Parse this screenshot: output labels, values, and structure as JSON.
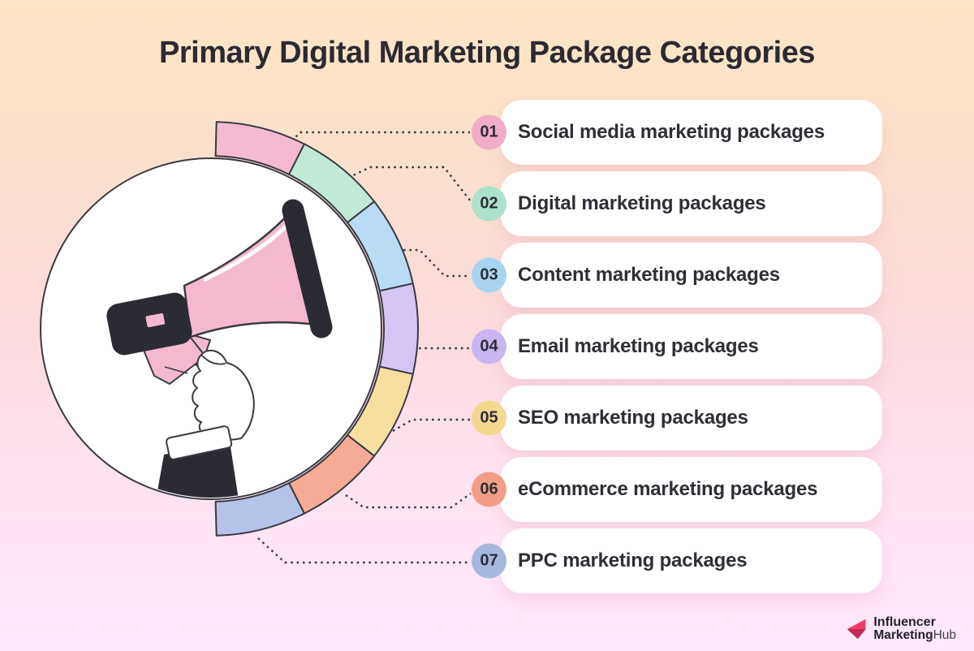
{
  "title": "Primary Digital Marketing Package Categories",
  "items": [
    {
      "number": "01",
      "label": "Social media marketing packages",
      "badge_color": "#f2abc8",
      "segment_color": "#f5bad2"
    },
    {
      "number": "02",
      "label": "Digital marketing packages",
      "badge_color": "#ace1cb",
      "segment_color": "#c0e9d6"
    },
    {
      "number": "03",
      "label": "Content marketing packages",
      "badge_color": "#a9d4f0",
      "segment_color": "#b9dcf4"
    },
    {
      "number": "04",
      "label": "Email marketing packages",
      "badge_color": "#c9b5f0",
      "segment_color": "#d5c4f6"
    },
    {
      "number": "05",
      "label": "SEO marketing packages",
      "badge_color": "#f4d88e",
      "segment_color": "#f7e09f"
    },
    {
      "number": "06",
      "label": "eCommerce marketing packages",
      "badge_color": "#f29d87",
      "segment_color": "#f5ab95"
    },
    {
      "number": "07",
      "label": "PPC marketing packages",
      "badge_color": "#a6b8e0",
      "segment_color": "#b4c3e7"
    }
  ],
  "logo": {
    "line1": "Influencer",
    "line2_bold": "Marketing",
    "line2_light": "Hub",
    "accent": "#ee3f68",
    "accent_dark": "#c02a54"
  },
  "colors": {
    "outline": "#3a3a43",
    "solid_dark": "#2b2b33",
    "megaphone_pink": "#f4b9ce",
    "card_text": "#2f2e37"
  }
}
